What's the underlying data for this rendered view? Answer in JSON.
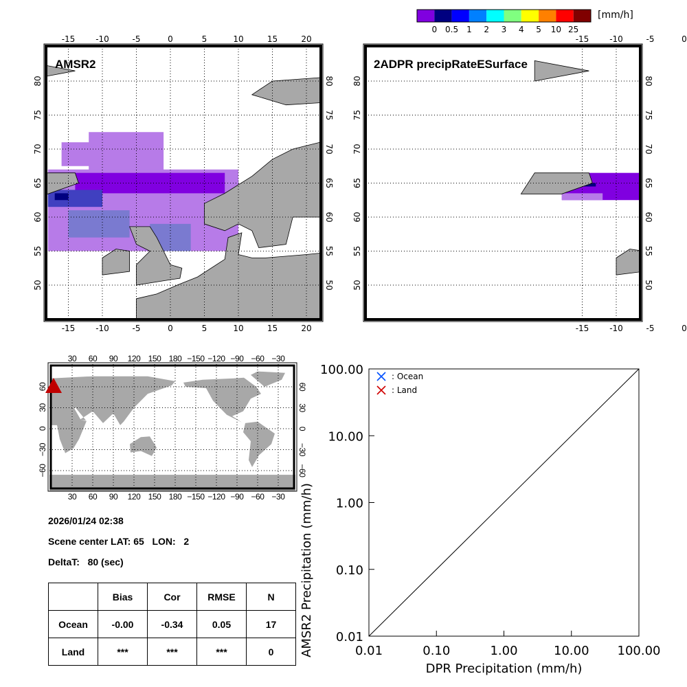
{
  "colorbar": {
    "unit": "[mm/h]",
    "labels": [
      "0",
      "0.5",
      "1",
      "2",
      "3",
      "4",
      "5",
      "10",
      "25"
    ],
    "colors": [
      "#8000e0",
      "#000080",
      "#0000ff",
      "#0080ff",
      "#00ffff",
      "#80ff80",
      "#ffff00",
      "#ff8000",
      "#ff0000",
      "#800000"
    ]
  },
  "map_left": {
    "title": "AMSR2"
  },
  "map_right": {
    "title": "2ADPR precipRateESurface"
  },
  "regional_axes": {
    "lon_ticks": [
      "-15",
      "-10",
      "-5",
      "0",
      "5",
      "10",
      "15",
      "20"
    ],
    "lat_ticks": [
      "50",
      "55",
      "60",
      "65",
      "70",
      "75",
      "80"
    ]
  },
  "globe": {
    "lon_ticks": [
      "30",
      "60",
      "90",
      "120",
      "150",
      "180",
      "−150",
      "−120",
      "−90",
      "−60",
      "−30"
    ],
    "lat_ticks": [
      "60",
      "30",
      "0",
      "−30",
      "−60"
    ],
    "marker": "scene-center"
  },
  "info": {
    "datetime": "2026/01/24 02:38",
    "scene_center": "Scene center LAT: 65   LON:   2",
    "deltat": "DeltaT:   80 (sec)"
  },
  "stats_table": {
    "headers": [
      "",
      "Bias",
      "Cor",
      "RMSE",
      "N"
    ],
    "rows": [
      [
        "Ocean",
        "-0.00",
        "-0.34",
        "0.05",
        "17"
      ],
      [
        "Land",
        "***",
        "***",
        "***",
        "0"
      ]
    ]
  },
  "chart_data": {
    "type": "scatter",
    "xlabel": "DPR Precipitation (mm/h)",
    "ylabel": "AMSR2 Precipitation (mm/h)",
    "xlim": [
      0.01,
      100
    ],
    "ylim": [
      0.01,
      100
    ],
    "scale": "log",
    "ticks": [
      "0.01",
      "0.10",
      "1.00",
      "10.00",
      "100.00"
    ],
    "legend": [
      {
        "label": ": Ocean",
        "color": "#0050ff"
      },
      {
        "label": ": Land",
        "color": "#d00000"
      }
    ],
    "legend_position": "top-left",
    "series": [
      {
        "name": "Ocean",
        "points": []
      },
      {
        "name": "Land",
        "points": []
      }
    ],
    "reference_line": "1:1"
  }
}
